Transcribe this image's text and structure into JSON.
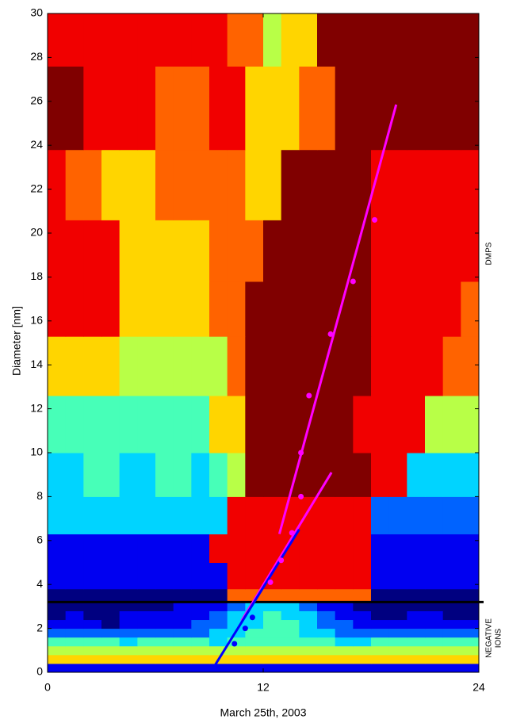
{
  "chart_data": {
    "type": "heatmap",
    "ylabel": "Diameter [nm]",
    "xlabel": "March 25th, 2003",
    "xlim": [
      0,
      24
    ],
    "xticks": [
      0,
      12,
      24
    ],
    "ylim": [
      0,
      30
    ],
    "yticks": [
      0,
      2,
      4,
      6,
      8,
      10,
      12,
      14,
      16,
      18,
      20,
      22,
      24,
      26,
      28,
      30
    ],
    "clim": [
      0,
      9
    ],
    "x_edges": [
      0,
      1,
      2,
      3,
      4,
      5,
      6,
      7,
      8,
      9,
      10,
      11,
      12,
      13,
      14,
      15,
      16,
      17,
      18,
      19,
      20,
      21,
      22,
      23,
      24
    ],
    "y_edges": [
      0,
      0.4,
      0.8,
      1.2,
      1.6,
      2.0,
      2.4,
      2.8,
      3.2,
      3.8,
      5.0,
      6.3,
      8.0,
      10.0,
      12.6,
      15.3,
      17.8,
      20.6,
      23.8,
      27.6,
      30
    ],
    "z": [
      [
        1,
        1,
        1,
        1,
        1,
        1,
        1,
        1,
        1,
        1,
        1,
        1,
        1,
        1,
        1,
        1,
        1,
        1,
        1,
        1,
        1,
        1,
        1,
        1
      ],
      [
        6,
        6,
        6,
        6,
        6,
        6,
        6,
        6,
        6,
        6,
        6,
        6,
        6,
        6,
        6,
        6,
        6,
        6,
        6,
        6,
        6,
        6,
        6,
        6
      ],
      [
        5,
        5,
        5,
        5,
        5,
        5,
        5,
        5,
        5,
        5,
        5,
        5,
        5,
        5,
        5,
        5,
        5,
        5,
        5,
        5,
        5,
        5,
        5,
        5
      ],
      [
        4,
        4,
        4,
        4,
        3,
        4,
        4,
        4,
        4,
        3,
        4,
        4,
        4,
        4,
        4,
        4,
        3,
        3,
        4,
        4,
        4,
        4,
        4,
        4
      ],
      [
        2,
        2,
        2,
        2,
        2,
        2,
        2,
        2,
        2,
        3,
        3,
        4,
        4,
        4,
        3,
        3,
        2,
        2,
        2,
        2,
        2,
        2,
        2,
        2
      ],
      [
        1,
        1,
        1,
        0,
        1,
        1,
        1,
        1,
        2,
        2,
        3,
        3,
        4,
        4,
        3,
        2,
        2,
        1,
        1,
        1,
        1,
        1,
        1,
        1
      ],
      [
        0,
        1,
        0,
        0,
        1,
        1,
        1,
        1,
        1,
        2,
        3,
        3,
        4,
        3,
        3,
        2,
        1,
        1,
        0,
        0,
        1,
        1,
        0,
        0
      ],
      [
        0,
        0,
        0,
        0,
        0,
        0,
        0,
        1,
        1,
        1,
        2,
        3,
        3,
        3,
        2,
        1,
        1,
        0,
        0,
        0,
        0,
        0,
        0,
        0
      ],
      [
        0,
        0,
        0,
        0,
        0,
        0,
        0,
        0,
        0,
        0,
        7,
        7,
        7,
        7,
        7,
        7,
        7,
        7,
        0,
        0,
        0,
        0,
        0,
        0
      ],
      [
        1,
        1,
        1,
        1,
        1,
        1,
        1,
        1,
        1,
        1,
        8,
        8,
        8,
        8,
        8,
        8,
        8,
        8,
        1,
        1,
        1,
        1,
        1,
        1
      ],
      [
        1,
        1,
        1,
        1,
        1,
        1,
        1,
        1,
        1,
        8,
        8,
        8,
        8,
        8,
        8,
        8,
        8,
        8,
        1,
        1,
        1,
        1,
        1,
        1
      ],
      [
        3,
        3,
        3,
        3,
        3,
        3,
        3,
        3,
        3,
        3,
        8,
        8,
        8,
        8,
        8,
        8,
        8,
        8,
        2,
        2,
        2,
        2,
        2,
        2
      ],
      [
        3,
        3,
        4,
        4,
        3,
        3,
        4,
        4,
        3,
        4,
        5,
        9,
        9,
        9,
        9,
        9,
        9,
        9,
        8,
        8,
        3,
        3,
        3,
        3
      ],
      [
        4,
        4,
        4,
        4,
        4,
        4,
        4,
        4,
        4,
        6,
        6,
        9,
        9,
        9,
        9,
        9,
        9,
        8,
        8,
        8,
        8,
        5,
        5,
        5
      ],
      [
        6,
        6,
        6,
        6,
        5,
        5,
        5,
        5,
        5,
        5,
        7,
        9,
        9,
        9,
        9,
        9,
        9,
        9,
        8,
        8,
        8,
        8,
        7,
        7
      ],
      [
        8,
        8,
        8,
        8,
        6,
        6,
        6,
        6,
        6,
        7,
        7,
        9,
        9,
        9,
        9,
        9,
        9,
        9,
        8,
        8,
        8,
        8,
        8,
        7
      ],
      [
        8,
        8,
        8,
        8,
        6,
        6,
        6,
        6,
        6,
        7,
        7,
        7,
        9,
        9,
        9,
        9,
        9,
        9,
        8,
        8,
        8,
        8,
        8,
        8
      ],
      [
        8,
        7,
        7,
        6,
        6,
        6,
        7,
        7,
        7,
        7,
        7,
        6,
        6,
        9,
        9,
        9,
        9,
        9,
        8,
        8,
        8,
        8,
        8,
        8
      ],
      [
        9,
        9,
        8,
        8,
        8,
        8,
        7,
        7,
        7,
        8,
        8,
        6,
        6,
        6,
        7,
        7,
        9,
        9,
        9,
        9,
        9,
        9,
        9,
        9
      ],
      [
        8,
        8,
        8,
        8,
        8,
        8,
        8,
        8,
        8,
        8,
        7,
        7,
        5,
        6,
        6,
        9,
        9,
        9,
        9,
        9,
        9,
        9,
        9,
        9
      ]
    ],
    "hline": 3.2,
    "lines": [
      {
        "color": "#ff00ff",
        "x": [
          12.9,
          19.4
        ],
        "y": [
          6.3,
          25.85
        ]
      },
      {
        "color": "#ff00ff",
        "x": [
          10.8,
          15.8
        ],
        "y": [
          2.35,
          9.1
        ]
      },
      {
        "color": "#0000ff",
        "x": [
          9.3,
          14.0
        ],
        "y": [
          0.3,
          6.5
        ]
      }
    ],
    "points": [
      {
        "color": "#ff00ff",
        "x": [
          18.2,
          17.0,
          15.75,
          14.55,
          14.1,
          14.1,
          13.6,
          13.0,
          12.4
        ],
        "y": [
          20.6,
          17.8,
          15.4,
          12.6,
          10.0,
          8.0,
          6.35,
          5.1,
          4.1
        ]
      },
      {
        "color": "#0000ff",
        "x": [
          10.4,
          11.0,
          11.4
        ],
        "y": [
          1.3,
          2.0,
          2.5
        ]
      }
    ],
    "side_labels": [
      "DMPS",
      "NEGATIVE",
      "IONS"
    ]
  }
}
